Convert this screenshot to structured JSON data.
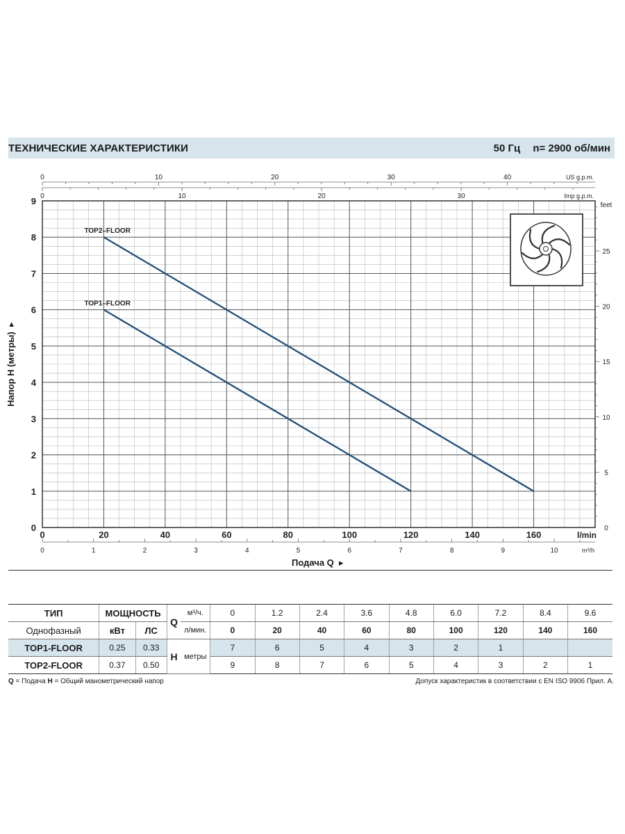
{
  "header": {
    "title": "ТЕХНИЧЕСКИЕ ХАРАКТЕРИСТИКИ",
    "frequency": "50 Гц",
    "speed": "n= 2900  об/мин"
  },
  "chart_data": {
    "type": "line",
    "xlabel": "Подача Q",
    "ylabel": "Напор H (метры)",
    "x_unit": "l/min",
    "x_unit_secondary": "m³/h",
    "y_unit_secondary": "feet",
    "xlim": [
      0,
      180
    ],
    "ylim": [
      0,
      9
    ],
    "x_ticks": [
      0,
      20,
      40,
      60,
      80,
      100,
      120,
      140,
      160
    ],
    "y_ticks": [
      0,
      1,
      2,
      3,
      4,
      5,
      6,
      7,
      8,
      9
    ],
    "m3h_ticks": [
      0,
      1,
      2,
      3,
      4,
      5,
      6,
      7,
      8,
      9,
      10
    ],
    "feet_ticks": [
      0,
      5,
      10,
      15,
      20,
      25
    ],
    "usgpm_label": "US g.p.m.",
    "usgpm_ticks": [
      0,
      10,
      20,
      30,
      40
    ],
    "impgpm_label": "Imp g.p.m.",
    "impgpm_ticks": [
      0,
      10,
      20,
      30
    ],
    "grid": true,
    "series": [
      {
        "name": "TOP2–FLOOR",
        "x": [
          20,
          160
        ],
        "y": [
          8,
          1
        ],
        "color": "#1f4e79"
      },
      {
        "name": "TOP1–FLOOR",
        "x": [
          20,
          120
        ],
        "y": [
          6,
          1
        ],
        "color": "#1f4e79"
      }
    ]
  },
  "table": {
    "col_type": "ТИП",
    "col_power": "МОЩНОСТЬ",
    "phase": "Однофазный",
    "kw": "кВт",
    "hp": "ЛС",
    "q_symbol": "Q",
    "q_m3h_unit": "м³/ч.",
    "q_lmin_unit": "л/мин.",
    "h_symbol": "H",
    "h_unit": "метры",
    "q_m3h": [
      "0",
      "1.2",
      "2.4",
      "3.6",
      "4.8",
      "6.0",
      "7.2",
      "8.4",
      "9.6"
    ],
    "q_lmin": [
      "0",
      "20",
      "40",
      "60",
      "80",
      "100",
      "120",
      "140",
      "160"
    ],
    "models": [
      {
        "name": "TOP1-FLOOR",
        "kw": "0.25",
        "hp": "0.33",
        "h": [
          "7",
          "6",
          "5",
          "4",
          "3",
          "2",
          "1",
          "",
          ""
        ]
      },
      {
        "name": "TOP2-FLOOR",
        "kw": "0.37",
        "hp": "0.50",
        "h": [
          "9",
          "8",
          "7",
          "6",
          "5",
          "4",
          "3",
          "2",
          "1"
        ]
      }
    ]
  },
  "footer": {
    "q_symbol": "Q",
    "q_text": " = Подача ",
    "h_symbol": "H",
    "h_text": " = Общий манометрический напор",
    "norm": "Допуск характеристик в соответствии с EN ISO 9906 Прил. А."
  }
}
